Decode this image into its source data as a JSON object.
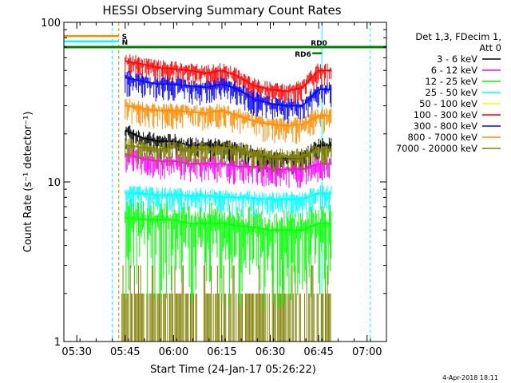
{
  "chart_data": {
    "type": "line",
    "title": "HESSI Observing Summary Count Rates",
    "xlabel": "Start Time (24-Jan-17 05:26:22)",
    "ylabel": "Count Rate (s⁻¹ detector⁻¹)",
    "yscale": "log",
    "ylim": [
      1,
      100
    ],
    "xlim": [
      "05:26",
      "07:06"
    ],
    "x_ticks": [
      "05:30",
      "05:45",
      "06:00",
      "06:15",
      "06:30",
      "06:45",
      "07:00"
    ],
    "y_ticks": [
      "1",
      "10",
      "100"
    ],
    "legend_header": [
      "Det 1,3, FDecim 1,",
      "Att 0"
    ],
    "series": [
      {
        "name": "3 - 6 keV",
        "color": "#000000",
        "x": [
          "05:45",
          "05:50",
          "05:55",
          "06:00",
          "06:05",
          "06:10",
          "06:15",
          "06:20",
          "06:25",
          "06:30",
          "06:35",
          "06:40",
          "06:45",
          "06:49"
        ],
        "values": [
          21,
          19,
          18,
          18,
          17,
          17,
          17,
          16,
          15,
          14,
          14,
          14,
          17,
          17
        ]
      },
      {
        "name": "6 - 12 keV",
        "color": "#ff00ff",
        "x": [
          "05:45",
          "05:50",
          "05:55",
          "06:00",
          "06:05",
          "06:10",
          "06:15",
          "06:20",
          "06:25",
          "06:30",
          "06:35",
          "06:40",
          "06:45",
          "06:49"
        ],
        "values": [
          15,
          14,
          13.5,
          13.5,
          13,
          13,
          13,
          12.5,
          12.5,
          12,
          12,
          12,
          13,
          13
        ]
      },
      {
        "name": "12 - 25 keV",
        "color": "#00ff00",
        "x": [
          "05:45",
          "05:50",
          "05:55",
          "06:00",
          "06:05",
          "06:10",
          "06:15",
          "06:20",
          "06:25",
          "06:30",
          "06:35",
          "06:40",
          "06:45",
          "06:49"
        ],
        "values": [
          6,
          5.8,
          5.8,
          5.8,
          5.5,
          5.5,
          5.5,
          5.3,
          5.2,
          5.0,
          5.0,
          5.0,
          5.5,
          5.5
        ]
      },
      {
        "name": "25 - 50 keV",
        "color": "#00ffff",
        "x": [
          "05:45",
          "05:50",
          "05:55",
          "06:00",
          "06:05",
          "06:10",
          "06:15",
          "06:20",
          "06:25",
          "06:30",
          "06:35",
          "06:40",
          "06:45",
          "06:49"
        ],
        "values": [
          8.5,
          8.5,
          8.3,
          8.3,
          8.2,
          8.2,
          8.0,
          8.0,
          7.9,
          7.8,
          7.8,
          7.8,
          8.5,
          8.5
        ]
      },
      {
        "name": "50 - 100 keV",
        "color": "#ffff00",
        "x": [],
        "values": []
      },
      {
        "name": "100 - 300 keV",
        "color": "#ff0000",
        "x": [
          "05:45",
          "05:50",
          "05:55",
          "06:00",
          "06:05",
          "06:10",
          "06:15",
          "06:20",
          "06:25",
          "06:30",
          "06:35",
          "06:40",
          "06:45",
          "06:49"
        ],
        "values": [
          57,
          55,
          52,
          51,
          50,
          48,
          50,
          46,
          40,
          38,
          37,
          39,
          50,
          50
        ]
      },
      {
        "name": "300 - 800 keV",
        "color": "#0000ff",
        "x": [
          "05:45",
          "05:50",
          "05:55",
          "06:00",
          "06:05",
          "06:10",
          "06:15",
          "06:20",
          "06:25",
          "06:30",
          "06:35",
          "06:40",
          "06:45",
          "06:49"
        ],
        "values": [
          45,
          43,
          41,
          41,
          40,
          39,
          41,
          38,
          33,
          31,
          30,
          30,
          38,
          38
        ]
      },
      {
        "name": "800 - 7000 keV",
        "color": "#ff8c00",
        "x": [
          "05:45",
          "05:50",
          "05:55",
          "06:00",
          "06:05",
          "06:10",
          "06:15",
          "06:20",
          "06:25",
          "06:30",
          "06:35",
          "06:40",
          "06:45",
          "06:49"
        ],
        "values": [
          30,
          29,
          28,
          28,
          27.5,
          27,
          28,
          26,
          24,
          23,
          22.5,
          23,
          26,
          26
        ]
      },
      {
        "name": "7000 - 20000 keV",
        "color": "#808000",
        "x": [
          "05:45",
          "05:50",
          "05:55",
          "06:00",
          "06:05",
          "06:10",
          "06:15",
          "06:20",
          "06:25",
          "06:30",
          "06:35",
          "06:40",
          "06:45",
          "06:49"
        ],
        "values": [
          17,
          16.5,
          16,
          16.5,
          16,
          16,
          16.5,
          16,
          15,
          14.5,
          14.5,
          14.5,
          16,
          16
        ]
      }
    ],
    "low_count_band": {
      "color": "#808000",
      "x_range": [
        "05:44",
        "06:49"
      ],
      "values": [
        1,
        2,
        3
      ]
    },
    "flags": [
      {
        "label": "S",
        "color": "#ff8c00",
        "x_range": [
          "05:26",
          "05:43"
        ],
        "y": 82
      },
      {
        "label": "N",
        "color": "#00ffff",
        "x_range": [
          "05:26",
          "05:43"
        ],
        "y": 76
      },
      {
        "label": "RD0",
        "color": "#008000",
        "x_range": [
          "05:26",
          "07:06"
        ],
        "y": 70
      },
      {
        "label": "RD6",
        "color": "#008000",
        "x_range": [
          "06:43",
          "06:46"
        ],
        "y": 64
      }
    ],
    "vertical_lines": [
      {
        "x": "05:26",
        "color": "#00ffff",
        "style": "solid"
      },
      {
        "x": "05:41",
        "color": "#00ffff",
        "style": "dashed"
      },
      {
        "x": "05:43",
        "color": "#00ffff",
        "style": "dashed"
      },
      {
        "x": "05:43",
        "color": "#ff8c00",
        "style": "dashed"
      },
      {
        "x": "06:46",
        "color": "#00ffff",
        "style": "solid"
      },
      {
        "x": "07:01",
        "color": "#00ffff",
        "style": "dashed"
      }
    ],
    "footer_text": "4-Apr-2018 18:11"
  }
}
